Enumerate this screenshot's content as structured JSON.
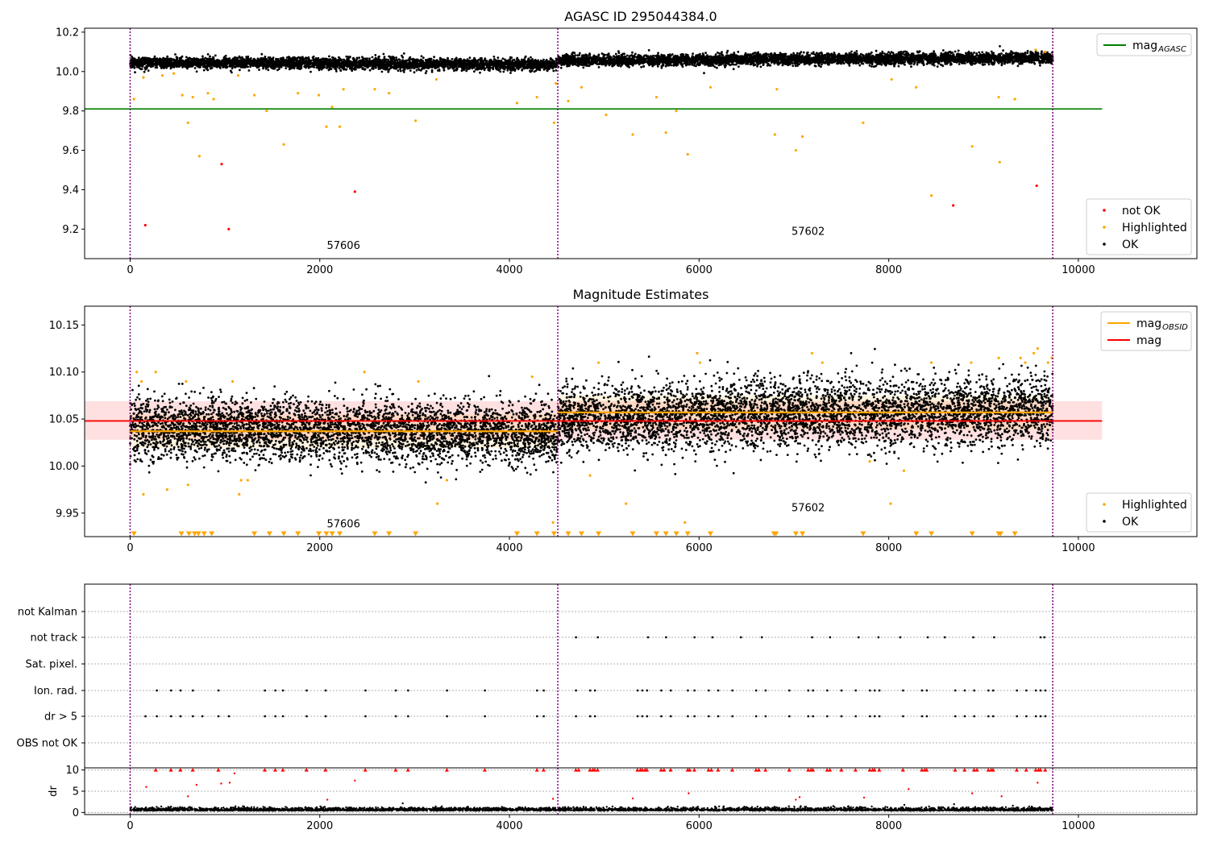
{
  "chart_data": [
    {
      "type": "scatter",
      "title": "AGASC ID 295044384.0",
      "xlim": [
        -480,
        11250
      ],
      "ylim": [
        9.05,
        10.22
      ],
      "xticks": [
        0,
        2000,
        4000,
        6000,
        8000,
        10000
      ],
      "yticks": [
        9.2,
        9.4,
        9.6,
        9.8,
        10.0,
        10.2
      ],
      "yticklabels": [
        "9.2",
        "9.4",
        "9.6",
        "9.8",
        "10.0",
        "10.2"
      ],
      "obs_boundaries": [
        0,
        4510,
        9730
      ],
      "obs_labels": [
        {
          "text": "57606",
          "x": 2250,
          "y": 9.1
        },
        {
          "text": "57602",
          "x": 7150,
          "y": 9.17
        }
      ],
      "ok_segments": [
        {
          "x0": 0,
          "x1": 4510,
          "y_start": 10.045,
          "y_end": 10.035,
          "spread": 0.014
        },
        {
          "x0": 4510,
          "x1": 9730,
          "y_start": 10.055,
          "y_end": 10.07,
          "spread": 0.014
        }
      ],
      "reference_line": {
        "name": "mag_AGASC",
        "y": 9.81,
        "x0": -480,
        "x1": 10250,
        "color": "#008000"
      },
      "series": [
        {
          "name": "not OK",
          "color": "#ff0000",
          "points": [
            [
              160,
              9.22
            ],
            [
              965,
              9.53
            ],
            [
              1040,
              9.2
            ],
            [
              2370,
              9.39
            ],
            [
              8680,
              9.32
            ],
            [
              9560,
              9.42
            ]
          ]
        },
        {
          "name": "Highlighted",
          "color": "#ffa500",
          "points": [
            [
              40,
              9.86
            ],
            [
              140,
              9.97
            ],
            [
              340,
              9.98
            ],
            [
              460,
              9.99
            ],
            [
              550,
              9.88
            ],
            [
              610,
              9.74
            ],
            [
              660,
              9.87
            ],
            [
              730,
              9.57
            ],
            [
              820,
              9.89
            ],
            [
              880,
              9.86
            ],
            [
              1140,
              9.98
            ],
            [
              1310,
              9.88
            ],
            [
              1440,
              9.8
            ],
            [
              1620,
              9.63
            ],
            [
              1770,
              9.89
            ],
            [
              1990,
              9.88
            ],
            [
              2070,
              9.72
            ],
            [
              2130,
              9.82
            ],
            [
              2210,
              9.72
            ],
            [
              2250,
              9.91
            ],
            [
              2580,
              9.91
            ],
            [
              2730,
              9.89
            ],
            [
              3010,
              9.75
            ],
            [
              3230,
              9.96
            ],
            [
              4080,
              9.84
            ],
            [
              4290,
              9.87
            ],
            [
              4470,
              9.74
            ],
            [
              4490,
              9.94
            ],
            [
              4620,
              9.85
            ],
            [
              4760,
              9.92
            ],
            [
              5020,
              9.78
            ],
            [
              5300,
              9.68
            ],
            [
              5550,
              9.87
            ],
            [
              5650,
              9.69
            ],
            [
              5760,
              9.8
            ],
            [
              5880,
              9.58
            ],
            [
              6120,
              9.92
            ],
            [
              6800,
              9.68
            ],
            [
              6820,
              9.91
            ],
            [
              7020,
              9.6
            ],
            [
              7090,
              9.67
            ],
            [
              7730,
              9.74
            ],
            [
              8030,
              9.96
            ],
            [
              8290,
              9.92
            ],
            [
              8450,
              9.37
            ],
            [
              8880,
              9.62
            ],
            [
              9160,
              9.87
            ],
            [
              9170,
              9.54
            ],
            [
              9330,
              9.86
            ],
            [
              9550,
              10.11
            ],
            [
              9650,
              10.1
            ]
          ]
        }
      ],
      "legends": [
        {
          "position": "top-right",
          "entries": [
            {
              "label": "mag",
              "sub": "AGASC",
              "color": "#008000",
              "kind": "line"
            }
          ]
        },
        {
          "position": "bottom-right",
          "entries": [
            {
              "label": "not OK",
              "color": "#ff0000",
              "kind": "dot"
            },
            {
              "label": "Highlighted",
              "color": "#ffa500",
              "kind": "dot"
            },
            {
              "label": "OK",
              "color": "#000000",
              "kind": "dot"
            }
          ]
        }
      ]
    },
    {
      "type": "scatter",
      "title": "Magnitude Estimates",
      "xlim": [
        -480,
        11250
      ],
      "ylim": [
        9.925,
        10.17
      ],
      "xticks": [
        0,
        2000,
        4000,
        6000,
        8000,
        10000
      ],
      "yticks": [
        9.95,
        10.0,
        10.05,
        10.1,
        10.15
      ],
      "yticklabels": [
        "9.95",
        "10.00",
        "10.05",
        "10.10",
        "10.15"
      ],
      "obs_boundaries": [
        0,
        4510,
        9730
      ],
      "obs_labels": [
        {
          "text": "57606",
          "x": 2250,
          "y": 9.935
        },
        {
          "text": "57602",
          "x": 7150,
          "y": 9.952
        }
      ],
      "ok_segments": [
        {
          "x0": 0,
          "x1": 4510,
          "y_start": 10.042,
          "y_end": 10.033,
          "spread": 0.016
        },
        {
          "x0": 4510,
          "x1": 9730,
          "y_start": 10.05,
          "y_end": 10.06,
          "spread": 0.018
        }
      ],
      "mag": {
        "name": "mag",
        "y": 10.048,
        "x0": -480,
        "x1": 10250,
        "band": [
          10.028,
          10.069
        ],
        "color": "#ff0000",
        "band_color": "#ffcccc"
      },
      "mag_obsid": {
        "name": "mag_OBSID",
        "color": "#ffa500",
        "segments": [
          {
            "x0": 0,
            "x1": 4510,
            "y": 10.037
          },
          {
            "x0": 4510,
            "x1": 9730,
            "y": 10.057
          }
        ]
      },
      "series": [
        {
          "name": "Highlighted",
          "color": "#ffa500",
          "points": [
            [
              70,
              10.1
            ],
            [
              120,
              10.09
            ],
            [
              270,
              10.1
            ],
            [
              140,
              9.97
            ],
            [
              390,
              9.975
            ],
            [
              590,
              10.09
            ],
            [
              610,
              9.98
            ],
            [
              1080,
              10.09
            ],
            [
              1150,
              9.97
            ],
            [
              1170,
              9.985
            ],
            [
              1240,
              9.985
            ],
            [
              2470,
              10.1
            ],
            [
              3040,
              10.09
            ],
            [
              3240,
              9.96
            ],
            [
              3340,
              9.985
            ],
            [
              4240,
              10.095
            ],
            [
              4460,
              9.94
            ],
            [
              4940,
              10.11
            ],
            [
              5230,
              9.96
            ],
            [
              4850,
              9.99
            ],
            [
              5850,
              9.94
            ],
            [
              5980,
              10.12
            ],
            [
              6010,
              10.11
            ],
            [
              7190,
              10.12
            ],
            [
              7300,
              10.11
            ],
            [
              7800,
              10.005
            ],
            [
              8020,
              9.96
            ],
            [
              8160,
              9.995
            ],
            [
              8450,
              10.11
            ],
            [
              8870,
              10.11
            ],
            [
              9160,
              10.115
            ],
            [
              9390,
              10.115
            ],
            [
              9440,
              10.11
            ],
            [
              9530,
              10.12
            ],
            [
              9570,
              10.125
            ],
            [
              9680,
              10.11
            ],
            [
              9720,
              10.115
            ]
          ]
        }
      ],
      "markers_bottom": {
        "y": 9.928,
        "color": "#ffa500",
        "x": [
          40,
          540,
          620,
          680,
          720,
          780,
          860,
          1310,
          1470,
          1620,
          1770,
          1990,
          2070,
          2130,
          2210,
          2580,
          2730,
          3010,
          4080,
          4290,
          4470,
          4620,
          4760,
          4940,
          5300,
          5550,
          5650,
          5760,
          5880,
          6120,
          6790,
          6810,
          7020,
          7090,
          7730,
          8290,
          8450,
          8880,
          9160,
          9180,
          9330
        ]
      },
      "legends": [
        {
          "position": "top-right",
          "entries": [
            {
              "label": "mag",
              "sub": "OBSID",
              "color": "#ffa500",
              "kind": "line"
            },
            {
              "label": "mag",
              "sub": "",
              "color": "#ff0000",
              "kind": "line"
            }
          ]
        },
        {
          "position": "bottom-right",
          "entries": [
            {
              "label": "Highlighted",
              "color": "#ffa500",
              "kind": "dot"
            },
            {
              "label": "OK",
              "color": "#000000",
              "kind": "dot"
            }
          ]
        }
      ]
    },
    {
      "type": "scatter",
      "title": "",
      "xlim": [
        -480,
        11250
      ],
      "categories": [
        "not Kalman",
        "not track",
        "Sat. pixel.",
        "Ion. rad.",
        "dr > 5",
        "OBS not OK"
      ],
      "obs_boundaries": [
        0,
        4510,
        9730
      ],
      "flag_points": {
        "not track": [
          4700,
          4930,
          5460,
          5650,
          5950,
          6140,
          6440,
          6660,
          7190,
          7380,
          7680,
          7890,
          8120,
          8410,
          8590,
          8890,
          9110,
          9600,
          9640
        ],
        "Ion. rad.": [
          280,
          430,
          530,
          660,
          930,
          1420,
          1530,
          1610,
          1860,
          2060,
          2480,
          2800,
          2930,
          3340,
          3740,
          4290,
          4360,
          4700,
          4850,
          4900,
          5350,
          5400,
          5450,
          5600,
          5700,
          5880,
          5950,
          6100,
          6200,
          6350,
          6600,
          6700,
          6950,
          7150,
          7200,
          7350,
          7500,
          7650,
          7800,
          7850,
          7900,
          8150,
          8350,
          8400,
          8700,
          8800,
          8900,
          9050,
          9100,
          9350,
          9450,
          9550,
          9600,
          9650
        ],
        "dr > 5": [
          160,
          280,
          430,
          530,
          660,
          760,
          930,
          1040,
          1420,
          1530,
          1610,
          1860,
          2060,
          2480,
          2800,
          2930,
          3340,
          3740,
          4290,
          4360,
          4700,
          4850,
          4900,
          5350,
          5400,
          5450,
          5600,
          5700,
          5880,
          5950,
          6100,
          6200,
          6350,
          6600,
          6700,
          6950,
          7150,
          7200,
          7350,
          7500,
          7650,
          7800,
          7850,
          7900,
          8150,
          8350,
          8400,
          8700,
          8800,
          8900,
          9050,
          9100,
          9350,
          9450,
          9550,
          9600,
          9650
        ]
      }
    },
    {
      "type": "scatter",
      "title": "",
      "ylabel": "dr",
      "xlim": [
        -480,
        11250
      ],
      "ylim": [
        -0.5,
        10.5
      ],
      "xticks": [
        0,
        2000,
        4000,
        6000,
        8000,
        10000
      ],
      "yticks": [
        0,
        5,
        10
      ],
      "yticklabels": [
        "0",
        "5",
        "10"
      ],
      "obs_boundaries": [
        0,
        4510,
        9730
      ],
      "baseline": {
        "y": 0.6,
        "spread": 0.45,
        "x0": 0,
        "x1": 9730
      },
      "markers_top": {
        "y": 10,
        "color": "#ff0000",
        "x": [
          270,
          430,
          530,
          660,
          930,
          1420,
          1530,
          1610,
          1860,
          2060,
          2480,
          2800,
          2930,
          3340,
          3740,
          4290,
          4360,
          4700,
          4730,
          4850,
          4880,
          4900,
          4930,
          5350,
          5380,
          5400,
          5430,
          5450,
          5600,
          5630,
          5700,
          5880,
          5900,
          5950,
          6100,
          6130,
          6200,
          6350,
          6600,
          6630,
          6700,
          6950,
          7150,
          7180,
          7200,
          7350,
          7380,
          7500,
          7650,
          7800,
          7830,
          7850,
          7900,
          8150,
          8350,
          8380,
          8400,
          8700,
          8800,
          8900,
          8930,
          9050,
          9080,
          9100,
          9350,
          9450,
          9550,
          9580,
          9600,
          9650
        ]
      },
      "outliers": [
        [
          170,
          6
        ],
        [
          610,
          3.8
        ],
        [
          700,
          6.5
        ],
        [
          960,
          6.8
        ],
        [
          1050,
          7
        ],
        [
          1100,
          9.2
        ],
        [
          2080,
          3
        ],
        [
          2370,
          7.5
        ],
        [
          4460,
          3.2
        ],
        [
          5300,
          3.3
        ],
        [
          5890,
          4.5
        ],
        [
          7020,
          3
        ],
        [
          7060,
          3.6
        ],
        [
          7740,
          3.5
        ],
        [
          8210,
          5.5
        ],
        [
          8880,
          4.5
        ],
        [
          9190,
          3.8
        ],
        [
          9570,
          7
        ]
      ]
    }
  ]
}
